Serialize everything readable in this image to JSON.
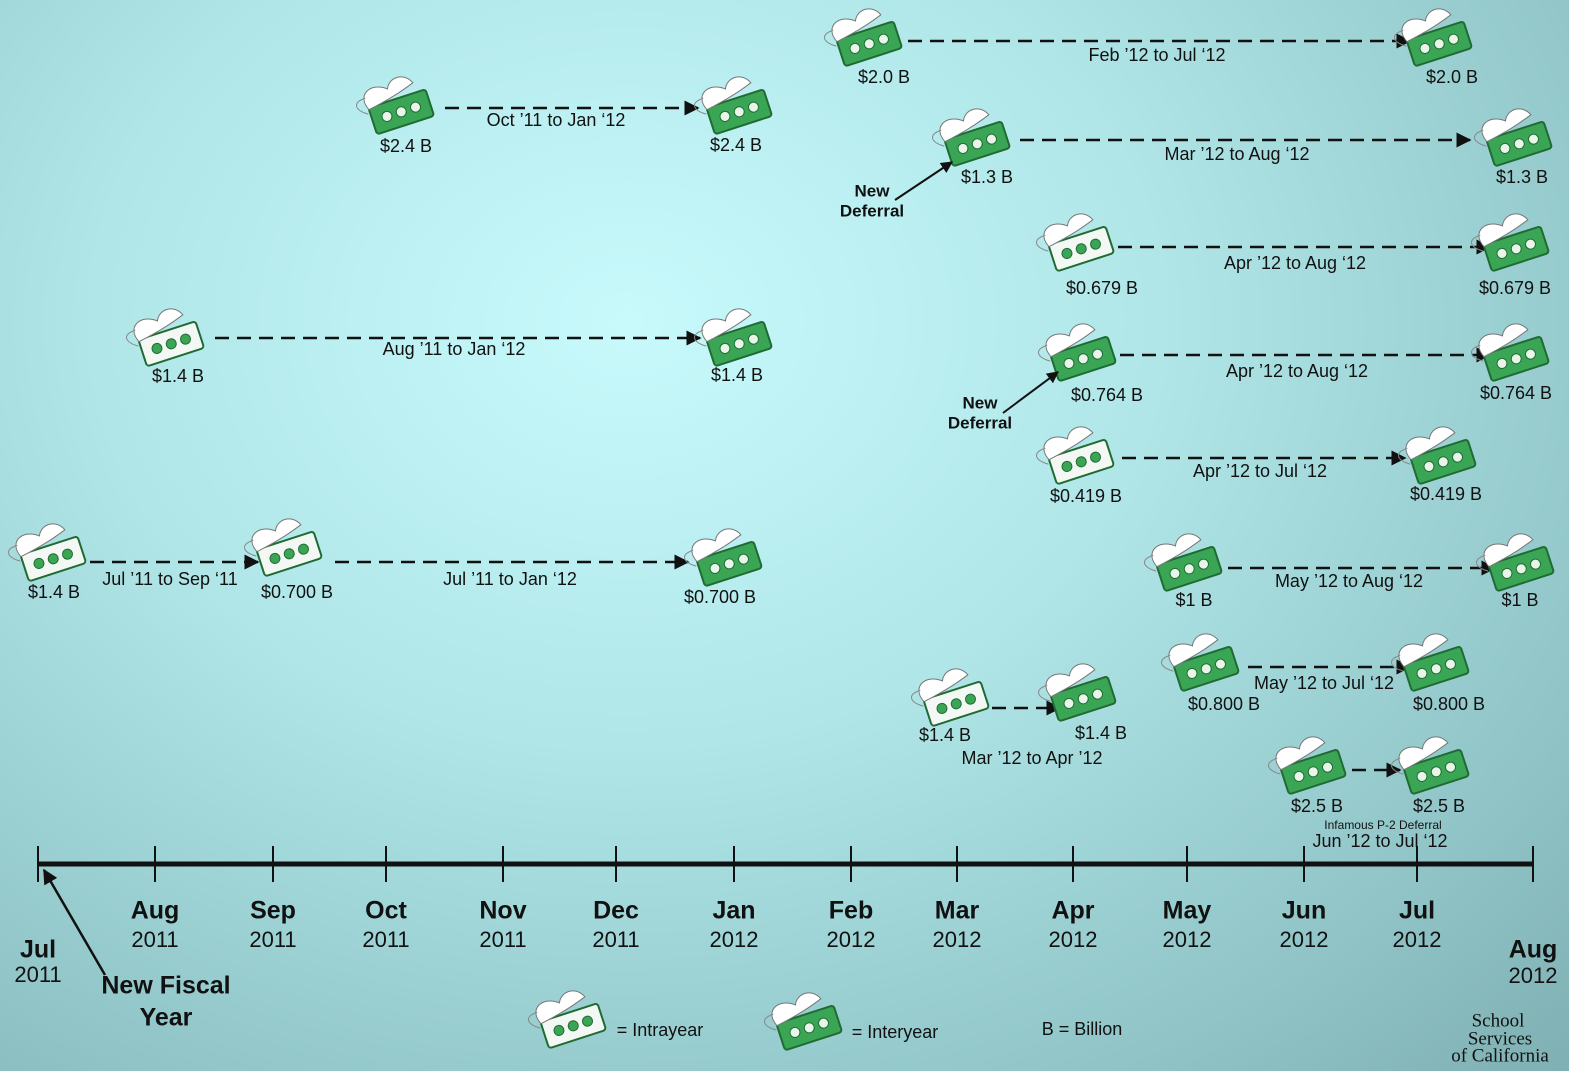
{
  "deferrals": [
    {
      "period": "Feb ’12 to Jul ‘12",
      "from": "$2.0 B",
      "to": "$2.0 B"
    },
    {
      "period": "Oct ’11 to Jan ‘12",
      "from": "$2.4 B",
      "to": "$2.4 B"
    },
    {
      "period": "Mar ’12 to Aug ‘12",
      "from": "$1.3 B",
      "to": "$1.3 B",
      "note": [
        "New",
        "Deferral"
      ]
    },
    {
      "period": "Apr ’12 to Aug ‘12",
      "from": "$0.679 B",
      "to": "$0.679 B"
    },
    {
      "period": "Aug ’11 to Jan ‘12",
      "from": "$1.4 B",
      "to": "$1.4 B"
    },
    {
      "period": "Apr ’12 to Aug ‘12",
      "from": "$0.764 B",
      "to": "$0.764 B",
      "note": [
        "New",
        "Deferral"
      ]
    },
    {
      "period": "Apr ’12 to Jul ‘12",
      "from": "$0.419 B",
      "to": "$0.419 B"
    },
    {
      "period": "Jul ’11 to Sep ‘11",
      "from": "$1.4 B",
      "to": "$0.700 B"
    },
    {
      "period": "Jul ’11 to Jan ‘12",
      "to": "$0.700 B"
    },
    {
      "period": "May ’12 to Aug ‘12",
      "from": "$1 B",
      "to": "$1 B"
    },
    {
      "period": "May ’12 to Jul ‘12",
      "from": "$0.800 B",
      "to": "$0.800 B"
    },
    {
      "period": "Mar ’12 to Apr ’12",
      "from": "$1.4 B",
      "to": "$1.4 B"
    },
    {
      "period": "Jun ’12 to Jul ‘12",
      "from": "$2.5 B",
      "to": "$2.5 B",
      "note": "Infamous P-2 Deferral"
    }
  ],
  "timeline": {
    "start": {
      "month": "Jul",
      "year": "2011"
    },
    "months": [
      {
        "month": "Aug",
        "year": "2011"
      },
      {
        "month": "Sep",
        "year": "2011"
      },
      {
        "month": "Oct",
        "year": "2011"
      },
      {
        "month": "Nov",
        "year": "2011"
      },
      {
        "month": "Dec",
        "year": "2011"
      },
      {
        "month": "Jan",
        "year": "2012"
      },
      {
        "month": "Feb",
        "year": "2012"
      },
      {
        "month": "Mar",
        "year": "2012"
      },
      {
        "month": "Apr",
        "year": "2012"
      },
      {
        "month": "May",
        "year": "2012"
      },
      {
        "month": "Jun",
        "year": "2012"
      },
      {
        "month": "Jul",
        "year": "2012"
      }
    ],
    "end": {
      "month": "Aug",
      "year": "2012"
    },
    "note": [
      "New Fiscal",
      "Year"
    ]
  },
  "legend": {
    "intrayear": "= Intrayear",
    "interyear": "= Interyear",
    "billion": "B = Billion"
  },
  "logo": [
    "School",
    "Services",
    "of California"
  ]
}
